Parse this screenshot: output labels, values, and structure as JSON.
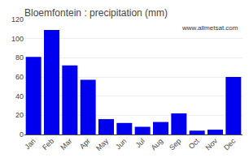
{
  "chart_data": {
    "type": "bar",
    "title": "Bloemfontein : precipitation (mm)",
    "categories": [
      "Jan",
      "Feb",
      "Mar",
      "Apr",
      "May",
      "Jun",
      "Jul",
      "Aug",
      "Sep",
      "Oct",
      "Nov",
      "Dec"
    ],
    "values": [
      81,
      109,
      72,
      57,
      16,
      12,
      8,
      13,
      22,
      4,
      5,
      60
    ],
    "color": "#0000ee",
    "ylim": [
      0,
      120
    ],
    "yticks": [
      0,
      20,
      40,
      60,
      80,
      100,
      120
    ],
    "grid": true,
    "annotation": "www.allmetsat.com"
  }
}
